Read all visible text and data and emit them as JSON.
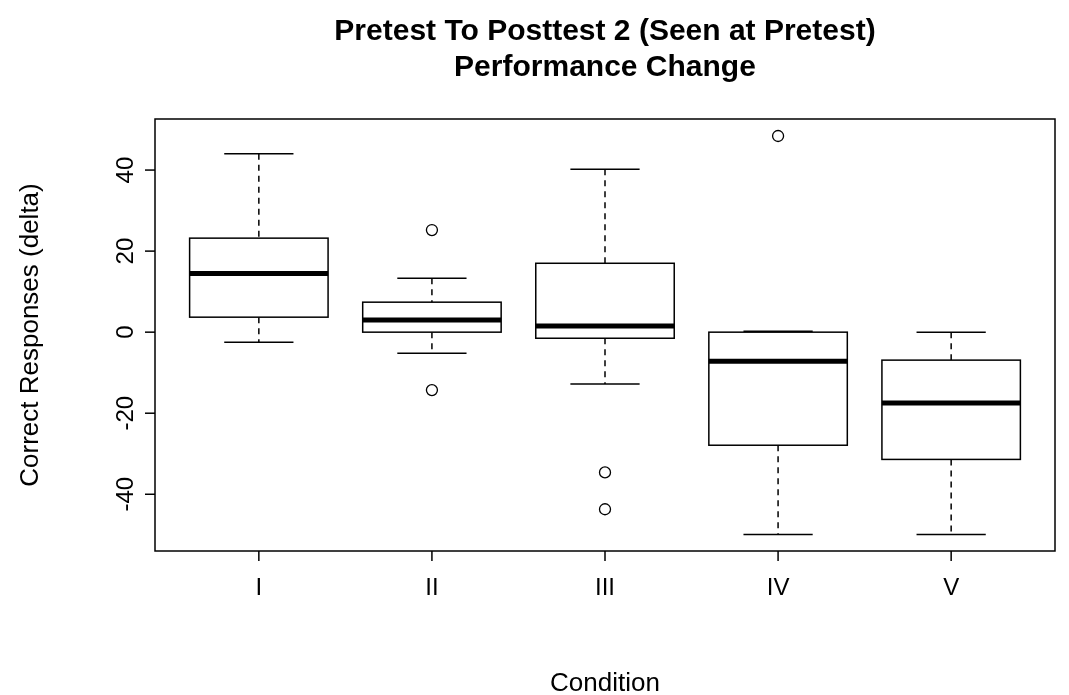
{
  "chart_data": {
    "type": "box",
    "title": "Pretest To Posttest 2 (Seen at Pretest)\nPerformance Change",
    "xlabel": "Condition",
    "ylabel": "Correct Responses (delta)",
    "categories": [
      "I",
      "II",
      "III",
      "IV",
      "V"
    ],
    "boxes": [
      {
        "low": -2.5,
        "q1": 3.7,
        "median": 14.5,
        "q3": 23.2,
        "high": 44
      },
      {
        "low": -5.2,
        "q1": 0,
        "median": 3,
        "q3": 7.4,
        "high": 13.3,
        "outliers": [
          25.2,
          -14.3
        ]
      },
      {
        "low": -12.8,
        "q1": -1.5,
        "median": 1.5,
        "q3": 17,
        "high": 40.2,
        "outliers": [
          -34.6,
          -43.7
        ]
      },
      {
        "low": -49.9,
        "q1": -27.9,
        "median": -7.2,
        "q3": 0,
        "high": 0.2,
        "outliers": [
          48.4
        ]
      },
      {
        "low": -49.9,
        "q1": -31.4,
        "median": -17.5,
        "q3": -6.9,
        "high": 0
      }
    ],
    "ylim": [
      -54,
      52.6
    ],
    "yticks": [
      -40,
      -20,
      0,
      20,
      40
    ],
    "grid": false,
    "marker": "circle"
  }
}
